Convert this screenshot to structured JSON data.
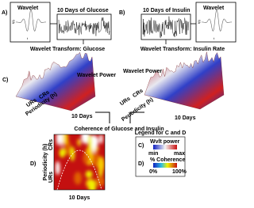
{
  "panel_a": {
    "label": "A)",
    "wavelet_title": "Wavelet",
    "wavelet_y": "f(t)",
    "wavelet_x": "t",
    "signal_title": "10 Days of Glucose",
    "transform_title": "Wavelet Transform: Glucose"
  },
  "panel_b": {
    "label": "B)",
    "signal_title": "10 Days of Insulin",
    "wavelet_title": "Wavelet",
    "wavelet_y": "f(t)",
    "wavelet_x": "t",
    "transform_title": "Wavelet Transform: Insulin Rate"
  },
  "panel_c": {
    "label": "C)",
    "left": {
      "z_axis": "Wavelet Power",
      "ur": "URs",
      "cr": "CRs",
      "y_axis": "Periodicity (h)",
      "x_axis": "10 Days"
    },
    "right": {
      "z_axis": "Wavelet Power",
      "ur": "URs",
      "cr": "CRs",
      "y_axis": "Periodicity (h)",
      "x_axis": "10 Days"
    }
  },
  "coherence_title": "Coherence of Glucose and Insulin",
  "panel_d": {
    "label": "D)",
    "y_axis": "Periodicity (h)",
    "cr": "CRs",
    "ur": "URs",
    "x_axis": "10 Days"
  },
  "legend": {
    "title": "Legend for C and D",
    "c_label": "C)",
    "c_title": "Wvlt power",
    "c_min": "min",
    "c_max": "max",
    "d_label": "D)",
    "d_title": "% Coherence",
    "d_min": "0%",
    "d_max": "100%"
  }
}
